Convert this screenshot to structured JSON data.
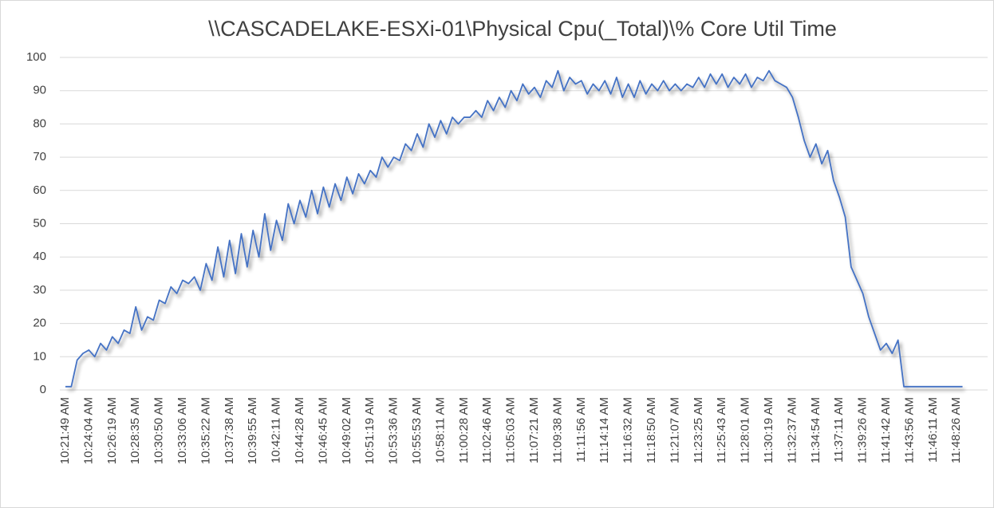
{
  "chart_data": {
    "type": "line",
    "title": "\\\\CASCADELAKE-ESXi-01\\Physical Cpu(_Total)\\% Core Util Time",
    "categories": [
      "10:21:49 AM",
      null,
      null,
      null,
      "10:24:04 AM",
      null,
      null,
      null,
      "10:26:19 AM",
      null,
      null,
      null,
      "10:28:35 AM",
      null,
      null,
      null,
      "10:30:50 AM",
      null,
      null,
      null,
      "10:33:06 AM",
      null,
      null,
      null,
      "10:35:22 AM",
      null,
      null,
      null,
      "10:37:38 AM",
      null,
      null,
      null,
      "10:39:55 AM",
      null,
      null,
      null,
      "10:42:11 AM",
      null,
      null,
      null,
      "10:44:28 AM",
      null,
      null,
      null,
      "10:46:45 AM",
      null,
      null,
      null,
      "10:49:02 AM",
      null,
      null,
      null,
      "10:51:19 AM",
      null,
      null,
      null,
      "10:53:36 AM",
      null,
      null,
      null,
      "10:55:53 AM",
      null,
      null,
      null,
      "10:58:11 AM",
      null,
      null,
      null,
      "11:00:28 AM",
      null,
      null,
      null,
      "11:02:46 AM",
      null,
      null,
      null,
      "11:05:03 AM",
      null,
      null,
      null,
      "11:07:21 AM",
      null,
      null,
      null,
      "11:09:38 AM",
      null,
      null,
      null,
      "11:11:56 AM",
      null,
      null,
      null,
      "11:14:14 AM",
      null,
      null,
      null,
      "11:16:32 AM",
      null,
      null,
      null,
      "11:18:50 AM",
      null,
      null,
      null,
      "11:21:07 AM",
      null,
      null,
      null,
      "11:23:25 AM",
      null,
      null,
      null,
      "11:25:43 AM",
      null,
      null,
      null,
      "11:28:01 AM",
      null,
      null,
      null,
      "11:30:19 AM",
      null,
      null,
      null,
      "11:32:37 AM",
      null,
      null,
      null,
      "11:34:54 AM",
      null,
      null,
      null,
      "11:37:11 AM",
      null,
      null,
      null,
      "11:39:26 AM",
      null,
      null,
      null,
      "11:41:42 AM",
      null,
      null,
      null,
      "11:43:56 AM",
      null,
      null,
      null,
      "11:46:11 AM",
      null,
      null,
      null,
      "11:48:26 AM",
      null
    ],
    "series": [
      {
        "name": "\\\\CASCADELAKE-ESXi-01\\Physical Cpu(_Total)\\% Core Util Time",
        "color": "#4472c4",
        "values": [
          1,
          1,
          9,
          11,
          12,
          10,
          14,
          12,
          16,
          14,
          18,
          17,
          25,
          18,
          22,
          21,
          27,
          26,
          31,
          29,
          33,
          32,
          34,
          30,
          38,
          33,
          43,
          34,
          45,
          35,
          47,
          37,
          48,
          40,
          53,
          42,
          51,
          45,
          56,
          50,
          57,
          52,
          60,
          53,
          61,
          55,
          62,
          57,
          64,
          59,
          65,
          62,
          66,
          64,
          70,
          67,
          70,
          69,
          74,
          72,
          77,
          73,
          80,
          76,
          81,
          77,
          82,
          80,
          82,
          82,
          84,
          82,
          87,
          84,
          88,
          85,
          90,
          87,
          92,
          89,
          91,
          88,
          93,
          91,
          96,
          90,
          94,
          92,
          93,
          89,
          92,
          90,
          93,
          89,
          94,
          88,
          92,
          88,
          93,
          89,
          92,
          90,
          93,
          90,
          92,
          90,
          92,
          91,
          94,
          91,
          95,
          92,
          95,
          91,
          94,
          92,
          95,
          91,
          94,
          93,
          96,
          93,
          92,
          91,
          88,
          82,
          75,
          70,
          74,
          68,
          72,
          63,
          58,
          52,
          37,
          33,
          29,
          22,
          17,
          12,
          14,
          11,
          15,
          1,
          1,
          1,
          1,
          1,
          1,
          1,
          1,
          1,
          1,
          1
        ]
      }
    ],
    "ylim": [
      0,
      100
    ],
    "yticks": [
      0,
      10,
      20,
      30,
      40,
      50,
      60,
      70,
      80,
      90,
      100
    ],
    "grid": true
  }
}
